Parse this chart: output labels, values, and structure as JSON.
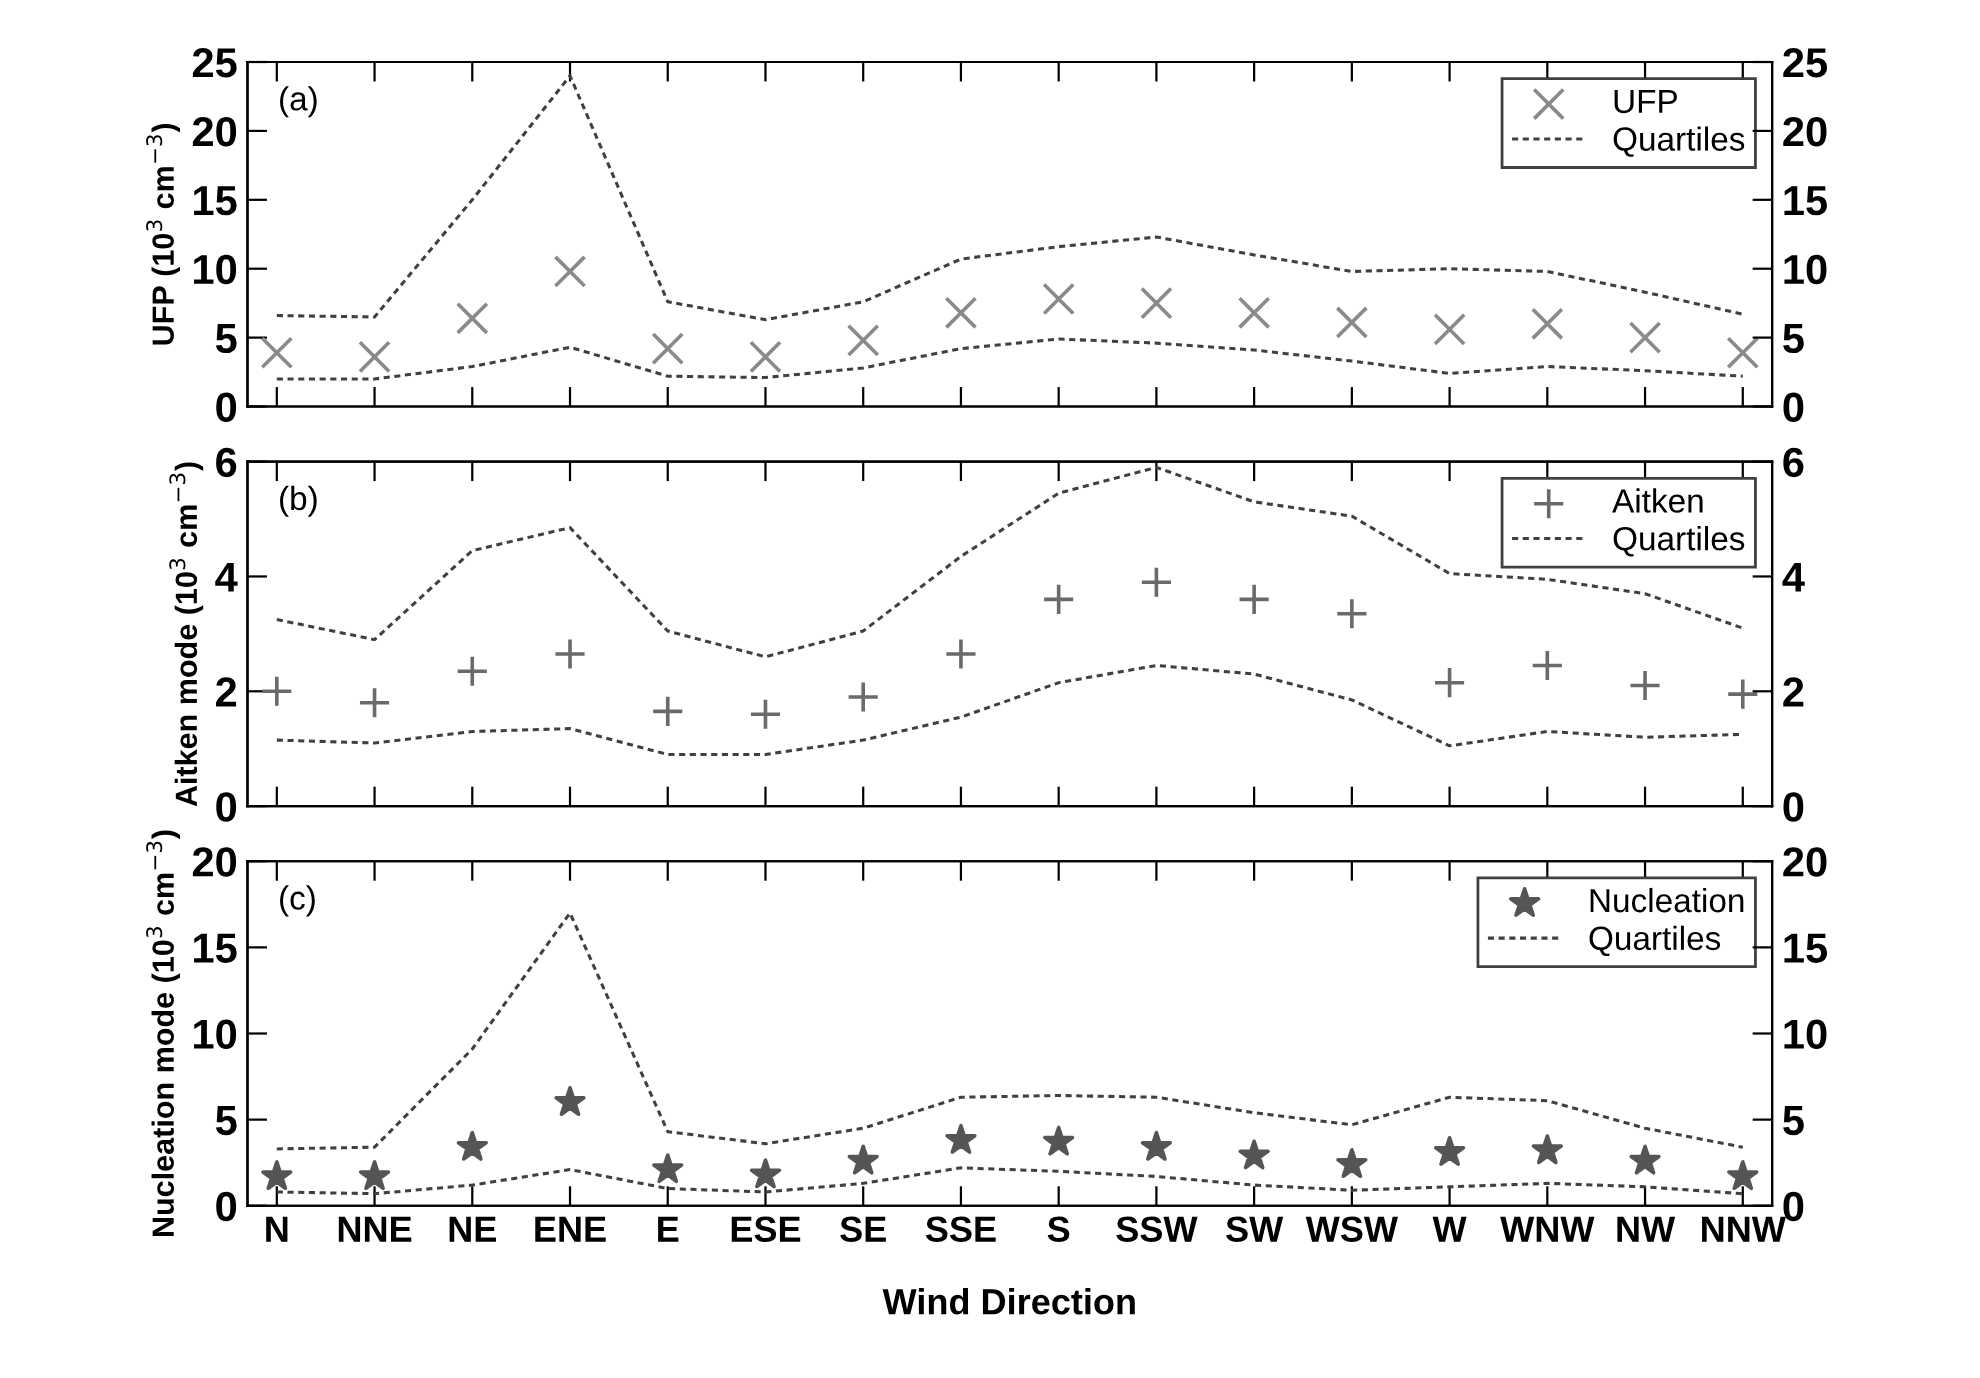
{
  "chart_data": [
    {
      "type": "scatter",
      "categories": [
        null,
        null,
        null,
        null,
        null,
        null,
        null,
        null,
        null,
        null,
        null,
        null,
        null,
        null,
        null,
        null
      ],
      "ylabel": "UFP (10$^{3}$ cm$^{−3}$)",
      "annotations": [
        "(a)"
      ],
      "series": [
        {
          "name": "UFP",
          "type": "scatter",
          "marker": "cross",
          "color": "#8a8a8a",
          "values": [
            3.9,
            3.6,
            6.4,
            9.8,
            4.2,
            3.6,
            4.8,
            6.8,
            7.8,
            7.5,
            6.8,
            6.1,
            5.6,
            6.0,
            5.0,
            3.9
          ]
        },
        {
          "name": "Quartiles",
          "type": "line",
          "line_style": "dashed",
          "color": "#404040",
          "values": [
            6.6,
            6.5,
            15,
            24,
            7.6,
            6.3,
            7.6,
            10.7,
            11.6,
            12.3,
            11.0,
            9.8,
            10.0,
            9.8,
            8.3,
            6.7
          ]
        },
        {
          "type": "line",
          "line_style": "dashed",
          "color": "#404040",
          "values": [
            2.0,
            2.0,
            2.9,
            4.3,
            2.2,
            2.1,
            2.8,
            4.2,
            4.9,
            4.6,
            4.1,
            3.3,
            2.4,
            2.9,
            2.6,
            2.2
          ]
        }
      ],
      "ylim": [
        0,
        25
      ],
      "yticks": [
        0,
        5,
        10,
        15,
        20,
        25
      ],
      "y2lim": [
        0,
        25
      ],
      "y2ticks": [
        0,
        5,
        10,
        15,
        20,
        25
      ],
      "tick_labels": "y",
      "legend": "top right",
      "grid": false
    },
    {
      "type": "scatter",
      "categories": [
        null,
        null,
        null,
        null,
        null,
        null,
        null,
        null,
        null,
        null,
        null,
        null,
        null,
        null,
        null,
        null
      ],
      "ylabel": "Aitken mode (10$^{3}$ cm$^{−3}$)",
      "annotations": [
        "(b)"
      ],
      "series": [
        {
          "name": "Aitken",
          "type": "scatter",
          "marker": "plus",
          "color": "#6a6a6a",
          "values": [
            2.0,
            1.8,
            2.35,
            2.65,
            1.65,
            1.6,
            1.9,
            2.65,
            3.6,
            3.9,
            3.6,
            3.35,
            2.15,
            2.45,
            2.1,
            1.95
          ]
        },
        {
          "name": "Quartiles",
          "type": "line",
          "line_style": "dashed",
          "color": "#404040",
          "values": [
            3.25,
            2.9,
            4.45,
            4.85,
            3.05,
            2.6,
            3.05,
            4.35,
            5.45,
            5.9,
            5.3,
            5.05,
            4.05,
            3.95,
            3.7,
            3.1
          ]
        },
        {
          "type": "line",
          "line_style": "dashed",
          "color": "#404040",
          "values": [
            1.15,
            1.1,
            1.3,
            1.35,
            0.9,
            0.9,
            1.15,
            1.55,
            2.15,
            2.45,
            2.3,
            1.85,
            1.05,
            1.3,
            1.2,
            1.25
          ]
        }
      ],
      "ylim": [
        0,
        6
      ],
      "yticks": [
        0,
        2,
        4,
        6
      ],
      "y2lim": [
        0,
        6
      ],
      "y2ticks": [
        0,
        2,
        4,
        6
      ],
      "tick_labels": "y",
      "legend": "top right",
      "grid": false
    },
    {
      "type": "scatter",
      "categories": [
        "N",
        "NNE",
        "NE",
        "ENE",
        "E",
        "ESE",
        "SE",
        "SSE",
        "S",
        "SSW",
        "SW",
        "WSW",
        "W",
        "WNW",
        "NW",
        "NNW"
      ],
      "xlabel": "Wind Direction",
      "ylabel": "Nucleation mode (10$^{3}$ cm$^{−3}$)",
      "annotations": [
        "(c)"
      ],
      "series": [
        {
          "name": "Nucleation",
          "type": "scatter",
          "marker": "star",
          "color": "#555555",
          "values": [
            1.7,
            1.7,
            3.4,
            6.0,
            2.1,
            1.8,
            2.6,
            3.8,
            3.7,
            3.4,
            2.9,
            2.4,
            3.1,
            3.2,
            2.6,
            1.7
          ]
        },
        {
          "name": "Quartiles",
          "type": "line",
          "line_style": "dashed",
          "color": "#404040",
          "values": [
            3.3,
            3.4,
            9.1,
            17,
            4.3,
            3.6,
            4.5,
            6.3,
            6.4,
            6.3,
            5.4,
            4.7,
            6.3,
            6.1,
            4.5,
            3.4
          ]
        },
        {
          "type": "line",
          "line_style": "dashed",
          "color": "#404040",
          "values": [
            0.8,
            0.7,
            1.2,
            2.1,
            1.0,
            0.8,
            1.3,
            2.2,
            2.0,
            1.7,
            1.2,
            0.9,
            1.1,
            1.3,
            1.1,
            0.7
          ]
        }
      ],
      "ylim": [
        0,
        20
      ],
      "yticks": [
        0,
        5,
        10,
        15,
        20
      ],
      "y2lim": [
        0,
        20
      ],
      "y2ticks": [
        0,
        5,
        10,
        15,
        20
      ],
      "legend": "top right",
      "grid": false
    }
  ]
}
